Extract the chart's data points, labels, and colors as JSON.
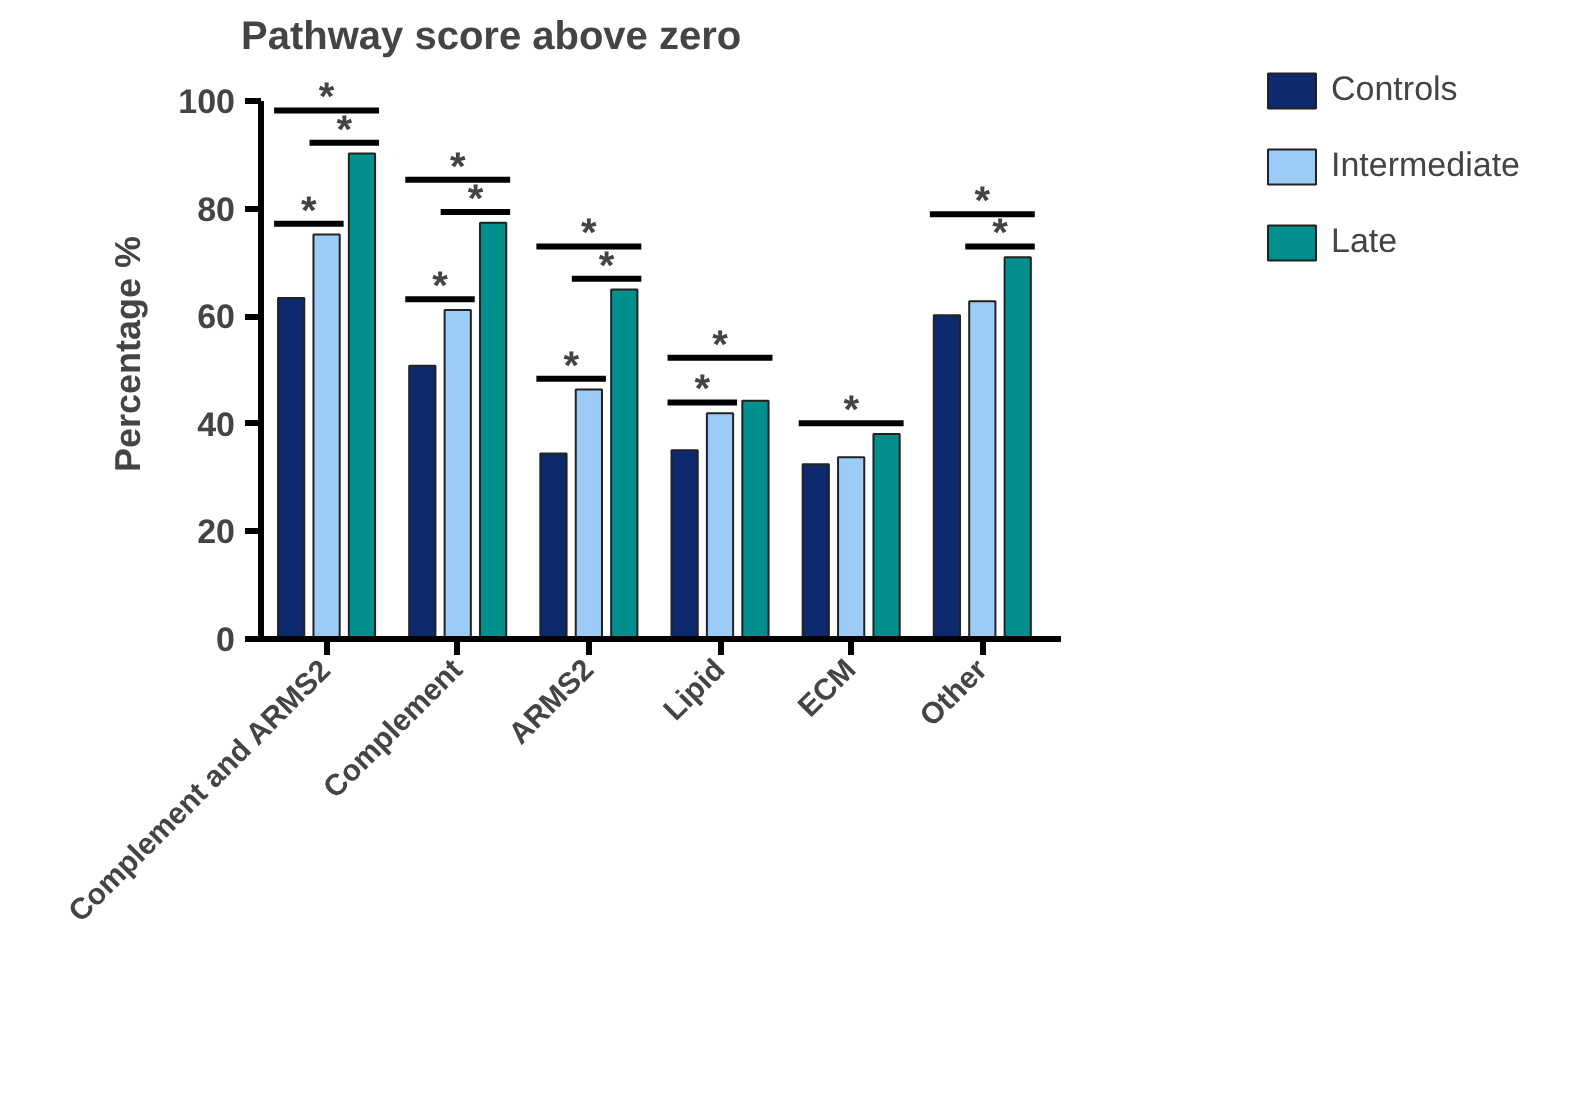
{
  "chart_data": {
    "type": "bar",
    "title": "Pathway score above zero",
    "ylabel": "Percentage %",
    "categories": [
      "Complement and ARMS2",
      "Complement",
      "ARMS2",
      "Lipid",
      "ECM",
      "Other"
    ],
    "series": [
      {
        "name": "Controls",
        "color": "#0d2a6e",
        "values": [
          63.4,
          50.8,
          34.5,
          35.1,
          32.5,
          60.2
        ]
      },
      {
        "name": "Intermediate",
        "color": "#9dcbf7",
        "values": [
          75.2,
          61.2,
          46.4,
          42.0,
          33.8,
          62.8
        ]
      },
      {
        "name": "Late",
        "color": "#008f8c",
        "values": [
          90.3,
          77.4,
          65.0,
          44.3,
          38.1,
          71.0
        ]
      }
    ],
    "ylim": [
      0,
      100
    ],
    "yticks": [
      0,
      20,
      40,
      60,
      80,
      100
    ],
    "grid": false,
    "legend": "top right",
    "annotations": [
      "*",
      "*",
      "*",
      "*",
      "*",
      "*",
      "*",
      "*",
      "*",
      "*",
      "*",
      "*",
      "*",
      "*"
    ]
  }
}
